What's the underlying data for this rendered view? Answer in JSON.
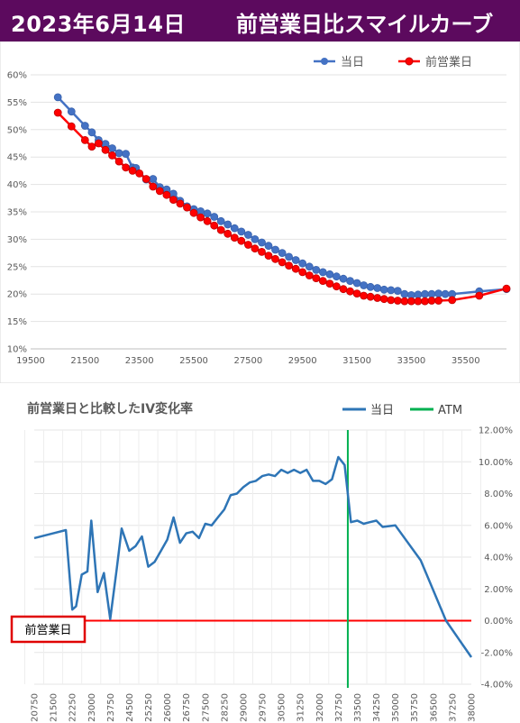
{
  "header": {
    "date": "2023年6月14日",
    "title": "前営業日比スマイルカーブ"
  },
  "colors": {
    "header_bg": "#5c0a5e",
    "today_smile": "#4472c4",
    "prev_smile": "#ff0000",
    "iv_change": "#2e75b6",
    "atm": "#00b050",
    "zero_line": "#ff0000"
  },
  "chart_data": [
    {
      "type": "line",
      "title": "",
      "xlim": [
        19500,
        37000
      ],
      "ylim": [
        0.1,
        0.6
      ],
      "x_ticks": [
        "19500",
        "21500",
        "23500",
        "25500",
        "27500",
        "29500",
        "31500",
        "33500",
        "35500"
      ],
      "y_ticks": [
        "10%",
        "15%",
        "20%",
        "25%",
        "30%",
        "35%",
        "40%",
        "45%",
        "50%",
        "55%",
        "60%"
      ],
      "legend": "top-right",
      "grid": true,
      "series": [
        {
          "name": "当日",
          "color": "#4472c4",
          "points": [
            [
              20500,
              0.559
            ],
            [
              21000,
              0.533
            ],
            [
              21500,
              0.507
            ],
            [
              21750,
              0.495
            ],
            [
              22000,
              0.481
            ],
            [
              22250,
              0.474
            ],
            [
              22500,
              0.466
            ],
            [
              22750,
              0.457
            ],
            [
              23000,
              0.456
            ],
            [
              23250,
              0.431
            ],
            [
              23375,
              0.43
            ],
            [
              23750,
              0.409
            ],
            [
              24000,
              0.41
            ],
            [
              24250,
              0.395
            ],
            [
              24500,
              0.391
            ],
            [
              24750,
              0.383
            ],
            [
              25000,
              0.37
            ],
            [
              25250,
              0.36
            ],
            [
              25500,
              0.355
            ],
            [
              25750,
              0.351
            ],
            [
              26000,
              0.347
            ],
            [
              26250,
              0.341
            ],
            [
              26500,
              0.333
            ],
            [
              26750,
              0.327
            ],
            [
              27000,
              0.32
            ],
            [
              27250,
              0.314
            ],
            [
              27500,
              0.308
            ],
            [
              27750,
              0.3
            ],
            [
              28000,
              0.294
            ],
            [
              28250,
              0.288
            ],
            [
              28500,
              0.281
            ],
            [
              28750,
              0.275
            ],
            [
              29000,
              0.268
            ],
            [
              29250,
              0.262
            ],
            [
              29500,
              0.256
            ],
            [
              29750,
              0.25
            ],
            [
              30000,
              0.244
            ],
            [
              30250,
              0.24
            ],
            [
              30500,
              0.236
            ],
            [
              30750,
              0.232
            ],
            [
              31000,
              0.228
            ],
            [
              31250,
              0.224
            ],
            [
              31500,
              0.22
            ],
            [
              31750,
              0.216
            ],
            [
              32000,
              0.213
            ],
            [
              32250,
              0.211
            ],
            [
              32500,
              0.208
            ],
            [
              32750,
              0.207
            ],
            [
              33000,
              0.206
            ],
            [
              33250,
              0.2
            ],
            [
              33500,
              0.198
            ],
            [
              33750,
              0.199
            ],
            [
              34000,
              0.2
            ],
            [
              34250,
              0.2
            ],
            [
              34500,
              0.201
            ],
            [
              34750,
              0.2
            ],
            [
              35000,
              0.2
            ],
            [
              36000,
              0.205
            ],
            [
              37000,
              0.209
            ]
          ]
        },
        {
          "name": "前営業日",
          "color": "#ff0000",
          "points": [
            [
              20500,
              0.531
            ],
            [
              21000,
              0.506
            ],
            [
              21500,
              0.481
            ],
            [
              21750,
              0.469
            ],
            [
              22000,
              0.475
            ],
            [
              22250,
              0.463
            ],
            [
              22500,
              0.453
            ],
            [
              22750,
              0.442
            ],
            [
              23000,
              0.431
            ],
            [
              23250,
              0.425
            ],
            [
              23500,
              0.42
            ],
            [
              23750,
              0.41
            ],
            [
              24000,
              0.396
            ],
            [
              24250,
              0.388
            ],
            [
              24500,
              0.381
            ],
            [
              24750,
              0.372
            ],
            [
              25000,
              0.365
            ],
            [
              25250,
              0.358
            ],
            [
              25500,
              0.348
            ],
            [
              25750,
              0.34
            ],
            [
              26000,
              0.333
            ],
            [
              26250,
              0.325
            ],
            [
              26500,
              0.317
            ],
            [
              26750,
              0.31
            ],
            [
              27000,
              0.303
            ],
            [
              27250,
              0.297
            ],
            [
              27500,
              0.29
            ],
            [
              27750,
              0.283
            ],
            [
              28000,
              0.277
            ],
            [
              28250,
              0.27
            ],
            [
              28500,
              0.264
            ],
            [
              28750,
              0.258
            ],
            [
              29000,
              0.252
            ],
            [
              29250,
              0.246
            ],
            [
              29500,
              0.24
            ],
            [
              29750,
              0.234
            ],
            [
              30000,
              0.229
            ],
            [
              30250,
              0.224
            ],
            [
              30500,
              0.219
            ],
            [
              30750,
              0.214
            ],
            [
              31000,
              0.209
            ],
            [
              31250,
              0.205
            ],
            [
              31500,
              0.201
            ],
            [
              31750,
              0.197
            ],
            [
              32000,
              0.195
            ],
            [
              32250,
              0.193
            ],
            [
              32500,
              0.191
            ],
            [
              32750,
              0.189
            ],
            [
              33000,
              0.188
            ],
            [
              33250,
              0.187
            ],
            [
              33500,
              0.187
            ],
            [
              33750,
              0.187
            ],
            [
              34000,
              0.187
            ],
            [
              34250,
              0.188
            ],
            [
              34500,
              0.188
            ],
            [
              35000,
              0.189
            ],
            [
              36000,
              0.197
            ],
            [
              37000,
              0.21
            ]
          ]
        }
      ]
    },
    {
      "type": "line",
      "title": "前営業日と比較したIV変化率",
      "ylim": [
        -0.04,
        0.12
      ],
      "y_ticks": [
        "12.00%",
        "10.00%",
        "8.00%",
        "6.00%",
        "4.00%",
        "2.00%",
        "0.00%",
        "-2.00%",
        "-4.00%"
      ],
      "x_ticks": [
        "20750",
        "21500",
        "22250",
        "23000",
        "23750",
        "24500",
        "25250",
        "26000",
        "26750",
        "27500",
        "28250",
        "29000",
        "29750",
        "30500",
        "31250",
        "32000",
        "32750",
        "33500",
        "34250",
        "35000",
        "35750",
        "36500",
        "37250",
        "38000"
      ],
      "legend": "top-right",
      "grid": true,
      "atm_strike": 33125,
      "reference_label": "前営業日",
      "series": [
        {
          "name": "当日",
          "color": "#2e75b6",
          "points": [
            [
              20750,
              0.052
            ],
            [
              21500,
              0.055
            ],
            [
              22000,
              0.057
            ],
            [
              22250,
              0.007
            ],
            [
              22400,
              0.009
            ],
            [
              22625,
              0.029
            ],
            [
              22850,
              0.031
            ],
            [
              23000,
              0.063
            ],
            [
              23250,
              0.018
            ],
            [
              23500,
              0.03
            ],
            [
              23750,
              0.001
            ],
            [
              24000,
              0.032
            ],
            [
              24200,
              0.058
            ],
            [
              24500,
              0.044
            ],
            [
              24750,
              0.047
            ],
            [
              25000,
              0.053
            ],
            [
              25250,
              0.034
            ],
            [
              25500,
              0.037
            ],
            [
              25750,
              0.044
            ],
            [
              26000,
              0.051
            ],
            [
              26250,
              0.065
            ],
            [
              26500,
              0.049
            ],
            [
              26750,
              0.055
            ],
            [
              27000,
              0.056
            ],
            [
              27250,
              0.052
            ],
            [
              27500,
              0.061
            ],
            [
              27750,
              0.06
            ],
            [
              28000,
              0.065
            ],
            [
              28250,
              0.07
            ],
            [
              28500,
              0.079
            ],
            [
              28750,
              0.08
            ],
            [
              29000,
              0.084
            ],
            [
              29250,
              0.087
            ],
            [
              29500,
              0.088
            ],
            [
              29750,
              0.091
            ],
            [
              30000,
              0.092
            ],
            [
              30250,
              0.091
            ],
            [
              30500,
              0.095
            ],
            [
              30750,
              0.093
            ],
            [
              31000,
              0.095
            ],
            [
              31250,
              0.093
            ],
            [
              31500,
              0.095
            ],
            [
              31750,
              0.088
            ],
            [
              32000,
              0.088
            ],
            [
              32250,
              0.086
            ],
            [
              32500,
              0.089
            ],
            [
              32750,
              0.103
            ],
            [
              33000,
              0.098
            ],
            [
              33250,
              0.062
            ],
            [
              33500,
              0.063
            ],
            [
              33750,
              0.061
            ],
            [
              34000,
              0.062
            ],
            [
              34250,
              0.063
            ],
            [
              34500,
              0.059
            ],
            [
              35000,
              0.06
            ],
            [
              36000,
              0.038
            ],
            [
              37000,
              0.0
            ],
            [
              38000,
              -0.023
            ]
          ]
        }
      ]
    }
  ]
}
